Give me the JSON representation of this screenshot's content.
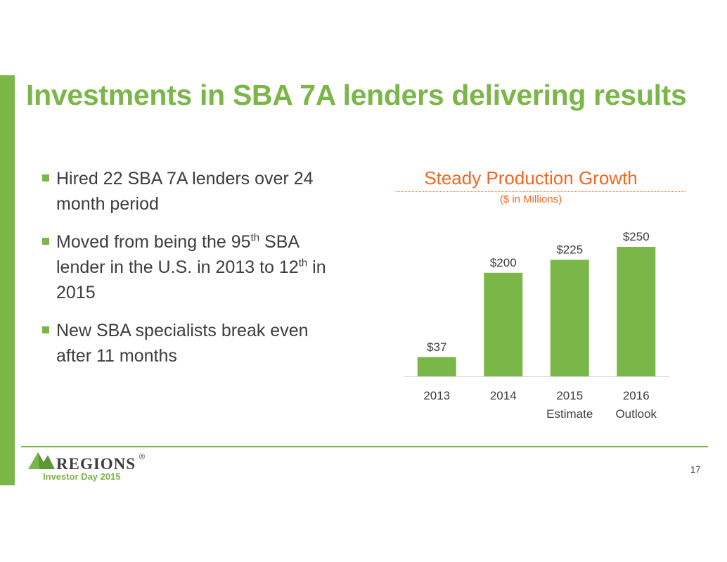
{
  "slide": {
    "title": "Investments in SBA 7A lenders delivering results",
    "bullets": [
      {
        "parts": [
          "Hired 22 SBA 7A lenders over 24 month period"
        ]
      },
      {
        "parts": [
          "Moved from being the 95",
          "th",
          " SBA lender in the U.S. in 2013 to 12",
          "th",
          " in 2015"
        ]
      },
      {
        "parts": [
          "New SBA specialists break even after 11 months"
        ]
      }
    ]
  },
  "footer": {
    "brand": "REGIONS",
    "registered_mark": "®",
    "label": "Investor Day 2015",
    "page_number": "17"
  },
  "colors": {
    "accent_green": "#7ab648",
    "accent_orange": "#f26722",
    "text_gray": "#3d3d3d"
  },
  "chart_data": {
    "type": "bar",
    "title": "Steady Production Growth",
    "subtitle": "($ in Millions)",
    "categories": [
      [
        "2013"
      ],
      [
        "2014"
      ],
      [
        "2015",
        "Estimate"
      ],
      [
        "2016",
        "Outlook"
      ]
    ],
    "values": [
      37,
      200,
      225,
      250
    ],
    "data_labels": [
      "$37",
      "$200",
      "$225",
      "$250"
    ],
    "ylim": [
      0,
      250
    ],
    "grid": false,
    "legend": "none",
    "bar_color": "#7ab648"
  }
}
